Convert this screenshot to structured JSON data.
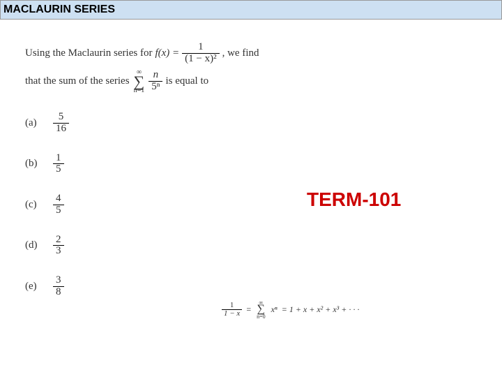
{
  "title": "MACLAURIN SERIES",
  "question": {
    "line1_prefix": "Using the Maclaurin series for ",
    "fx": "f(x) =",
    "frac_main": {
      "num": "1",
      "den": "(1 − x)²"
    },
    "line1_suffix": " , we find",
    "line2_prefix": "that the sum of the series ",
    "sum": {
      "upper": "∞",
      "lower": "n=1",
      "term_num": "n",
      "term_den": "5ⁿ"
    },
    "line2_suffix": " is equal to"
  },
  "options": [
    {
      "label": "(a)",
      "num": "5",
      "den": "16"
    },
    {
      "label": "(b)",
      "num": "1",
      "den": "5"
    },
    {
      "label": "(c)",
      "num": "4",
      "den": "5"
    },
    {
      "label": "(d)",
      "num": "2",
      "den": "3"
    },
    {
      "label": "(e)",
      "num": "3",
      "den": "8"
    }
  ],
  "term_label": "TERM-101",
  "hint": {
    "lhs": {
      "num": "1",
      "den": "1 − x"
    },
    "eq": "=",
    "sum": {
      "upper": "∞",
      "lower": "n=0",
      "term": "xⁿ"
    },
    "rhs": "= 1 + x + x² + x³ + · · ·"
  },
  "colors": {
    "title_bg": "#cde0f2",
    "term_color": "#cc0000",
    "text_color": "#333333"
  }
}
